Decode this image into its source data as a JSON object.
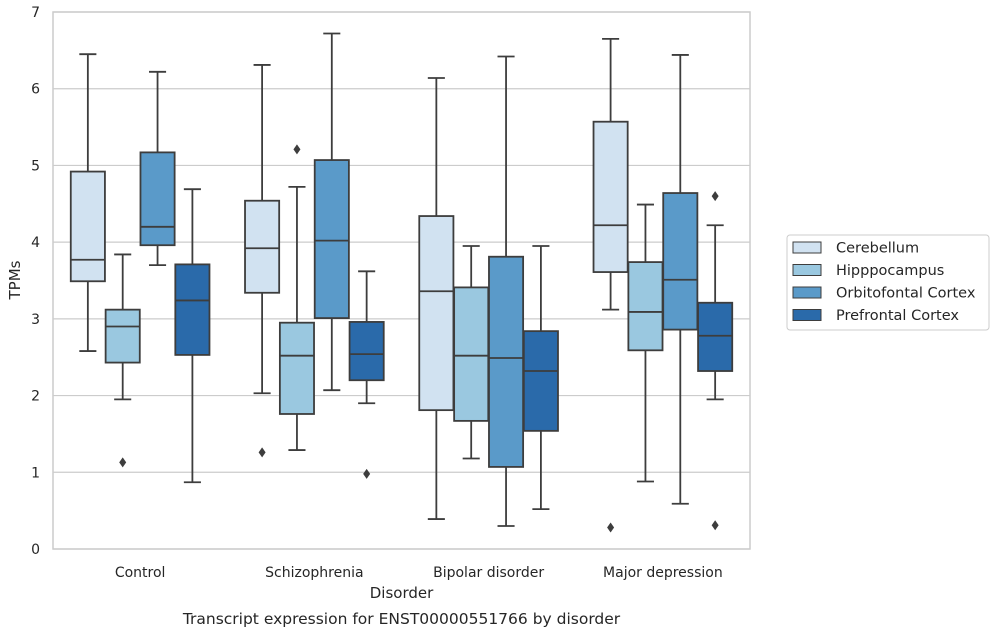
{
  "chart_data": {
    "type": "boxplot",
    "xlabel": "Disorder",
    "ylabel": "TPMs",
    "caption": "Transcript expression for ENST00000551766 by disorder",
    "ylim": [
      0,
      7
    ],
    "yticks": [
      0,
      1,
      2,
      3,
      4,
      5,
      6,
      7
    ],
    "grid": true,
    "legend_position": "right",
    "categories": [
      "Control",
      "Schizophrenia",
      "Bipolar disorder",
      "Major depression"
    ],
    "series": [
      {
        "name": "Cerebellum",
        "color": "#d1e2f1",
        "boxes": [
          {
            "whislo": 2.58,
            "q1": 3.49,
            "med": 3.77,
            "q3": 4.92,
            "whishi": 6.45,
            "fliers": []
          },
          {
            "whislo": 2.03,
            "q1": 3.34,
            "med": 3.92,
            "q3": 4.54,
            "whishi": 6.31,
            "fliers": [
              1.26
            ]
          },
          {
            "whislo": 0.39,
            "q1": 1.81,
            "med": 3.36,
            "q3": 4.34,
            "whishi": 6.14,
            "fliers": []
          },
          {
            "whislo": 3.12,
            "q1": 3.61,
            "med": 4.22,
            "q3": 5.57,
            "whishi": 6.65,
            "fliers": [
              0.28
            ]
          }
        ]
      },
      {
        "name": "Hipppocampus",
        "color": "#9ac8e0",
        "boxes": [
          {
            "whislo": 1.95,
            "q1": 2.43,
            "med": 2.9,
            "q3": 3.12,
            "whishi": 3.84,
            "fliers": [
              1.13
            ]
          },
          {
            "whislo": 1.29,
            "q1": 1.76,
            "med": 2.52,
            "q3": 2.95,
            "whishi": 4.72,
            "fliers": [
              5.21
            ]
          },
          {
            "whislo": 1.18,
            "q1": 1.67,
            "med": 2.52,
            "q3": 3.41,
            "whishi": 3.95,
            "fliers": []
          },
          {
            "whislo": 0.88,
            "q1": 2.59,
            "med": 3.09,
            "q3": 3.74,
            "whishi": 4.49,
            "fliers": []
          }
        ]
      },
      {
        "name": "Orbitofontal Cortex",
        "color": "#5a9ac9",
        "boxes": [
          {
            "whislo": 3.7,
            "q1": 3.96,
            "med": 4.2,
            "q3": 5.17,
            "whishi": 6.22,
            "fliers": []
          },
          {
            "whislo": 2.07,
            "q1": 3.01,
            "med": 4.02,
            "q3": 5.07,
            "whishi": 6.72,
            "fliers": []
          },
          {
            "whislo": 0.3,
            "q1": 1.07,
            "med": 2.49,
            "q3": 3.81,
            "whishi": 6.42,
            "fliers": []
          },
          {
            "whislo": 0.59,
            "q1": 2.86,
            "med": 3.51,
            "q3": 4.64,
            "whishi": 6.44,
            "fliers": []
          }
        ]
      },
      {
        "name": "Prefrontal Cortex",
        "color": "#2a6aaa",
        "boxes": [
          {
            "whislo": 0.87,
            "q1": 2.53,
            "med": 3.24,
            "q3": 3.71,
            "whishi": 4.69,
            "fliers": []
          },
          {
            "whislo": 1.9,
            "q1": 2.2,
            "med": 2.54,
            "q3": 2.96,
            "whishi": 3.62,
            "fliers": [
              0.98
            ]
          },
          {
            "whislo": 0.52,
            "q1": 1.54,
            "med": 2.32,
            "q3": 2.84,
            "whishi": 3.95,
            "fliers": []
          },
          {
            "whislo": 1.95,
            "q1": 2.32,
            "med": 2.78,
            "q3": 3.21,
            "whishi": 4.22,
            "fliers": [
              4.6,
              0.31
            ]
          }
        ]
      }
    ]
  }
}
